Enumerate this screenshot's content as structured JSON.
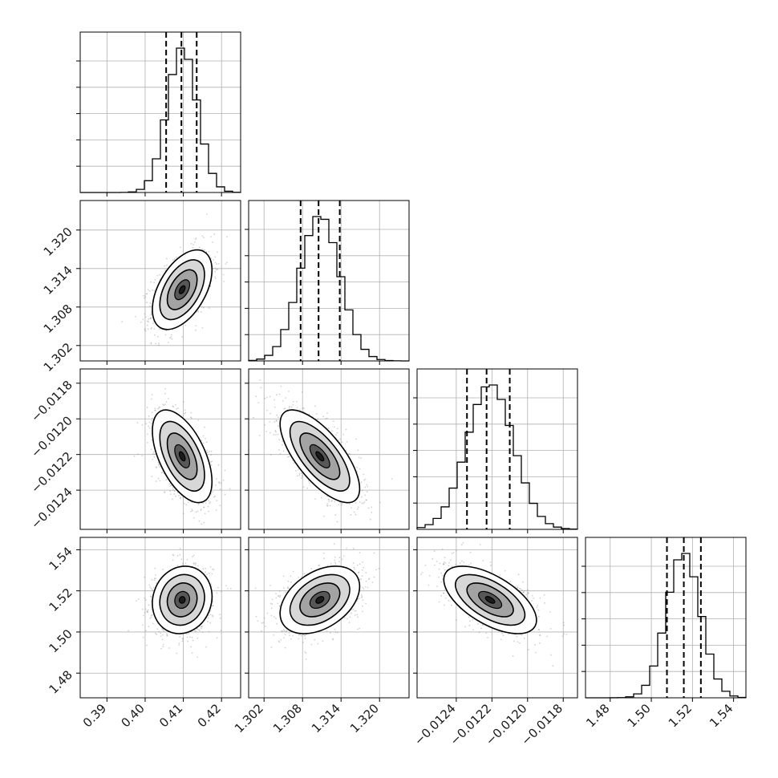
{
  "chart_data": {
    "type": "corner",
    "title": "",
    "parameters": [
      {
        "index": 0,
        "range": [
          0.383,
          0.425
        ],
        "ticks": [
          0.39,
          0.4,
          0.41,
          0.42
        ],
        "tick_labels": [
          "0.39",
          "0.40",
          "0.41",
          "0.42"
        ],
        "quantiles": [
          0.4055,
          0.4095,
          0.4135
        ],
        "mean": 0.4097,
        "sd": 0.0039
      },
      {
        "index": 1,
        "range": [
          1.2996,
          1.3246
        ],
        "ticks": [
          1.302,
          1.308,
          1.314,
          1.32
        ],
        "tick_labels": [
          "1.302",
          "1.308",
          "1.314",
          "1.320"
        ],
        "quantiles": [
          1.3077,
          1.3105,
          1.3138
        ],
        "mean": 1.3107,
        "sd": 0.0031
      },
      {
        "index": 2,
        "range": [
          -0.01262,
          -0.01172
        ],
        "ticks": [
          -0.0124,
          -0.0122,
          -0.012,
          -0.0118
        ],
        "tick_labels": [
          "−0.0124",
          "−0.0122",
          "−0.0120",
          "−0.0118"
        ],
        "quantiles": [
          -0.01234,
          -0.01223,
          -0.0121
        ],
        "mean": -0.01221,
        "sd": 0.00013
      },
      {
        "index": 3,
        "range": [
          1.468,
          1.546
        ],
        "ticks": [
          1.48,
          1.5,
          1.52,
          1.54
        ],
        "tick_labels": [
          "1.48",
          "1.50",
          "1.52",
          "1.54"
        ],
        "quantiles": [
          1.5076,
          1.5158,
          1.5241
        ],
        "mean": 1.5156,
        "sd": 0.0082
      }
    ],
    "correlations": {
      "0-1": 0.5,
      "0-2": -0.55,
      "0-3": 0.1,
      "1-2": -0.7,
      "1-3": 0.4,
      "2-3": -0.6
    },
    "histogram_bins": 20,
    "quantile_levels": [
      0.16,
      0.5,
      0.84
    ],
    "grid": true,
    "line_color": "#000000",
    "grid_color": "#b0b0b0",
    "density_color": "#000000",
    "scatter_color": "#7f7f7f"
  }
}
